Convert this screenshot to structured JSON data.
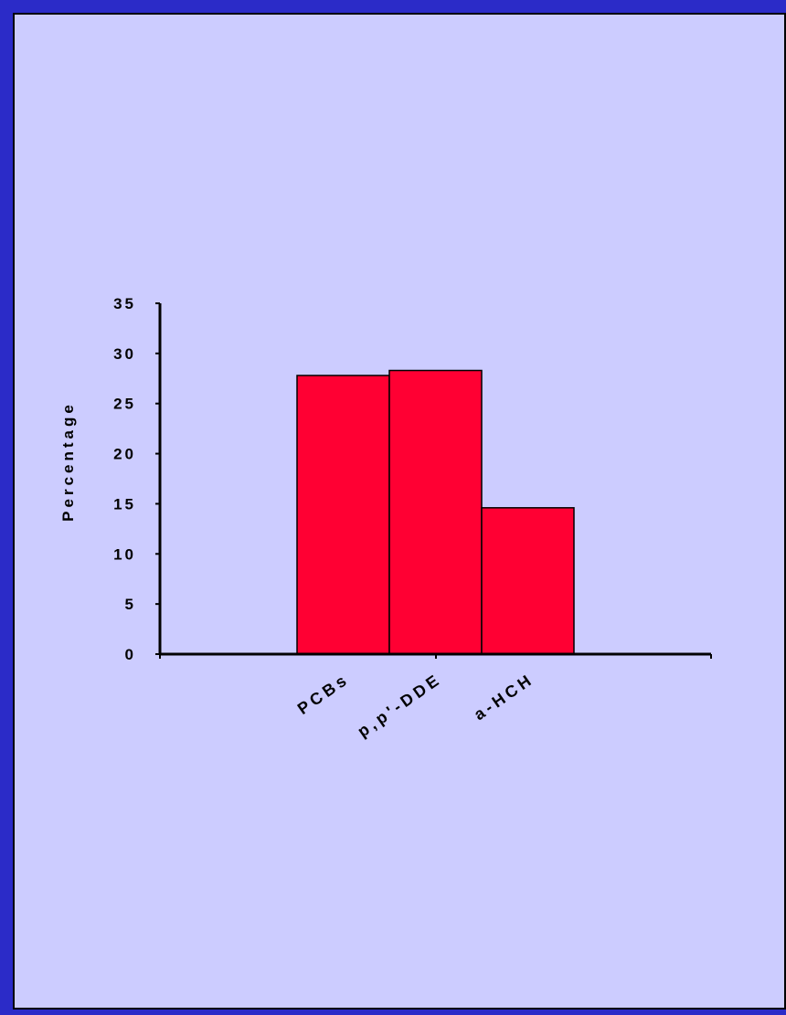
{
  "chart_data": {
    "type": "bar",
    "categories": [
      "PCBs",
      "p,p'-DDE",
      "a-HCH"
    ],
    "values": [
      27.8,
      28.3,
      14.6
    ],
    "title": "",
    "xlabel": "",
    "ylabel": "Percentage",
    "ylim": [
      0,
      35
    ],
    "yticks": [
      0,
      5,
      10,
      15,
      20,
      25,
      30,
      35
    ],
    "grid": false,
    "legend": "none",
    "bar_color": "#ff0033",
    "panel_color": "#ccccff",
    "border_color": "#2b2bc8"
  }
}
